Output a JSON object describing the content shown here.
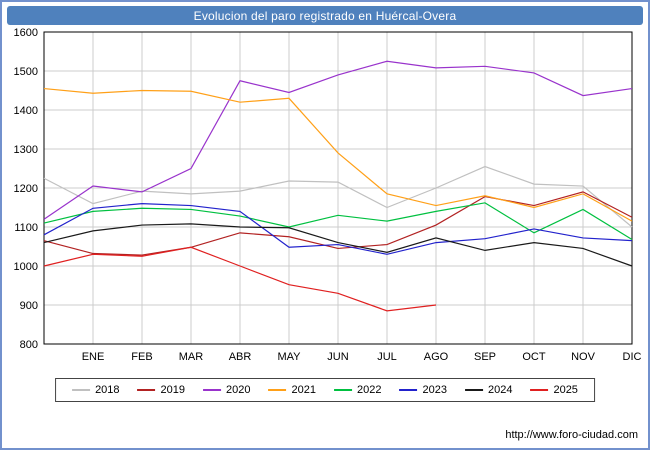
{
  "window": {
    "title": "Evolucion del paro registrado en Huércal-Overa"
  },
  "footer": {
    "url": "http://www.foro-ciudad.com"
  },
  "theme": {
    "accent": "#4f81bd",
    "frame_border": "#7291cd",
    "grid_color": "#cccccc",
    "plot_border": "#000000"
  },
  "chart_data": {
    "type": "line",
    "title": "Evolucion del paro registrado en Huércal-Overa",
    "xlabel": "",
    "ylabel": "",
    "ylim": [
      800,
      1600
    ],
    "ytick_step": 100,
    "yticks": [
      800,
      900,
      1000,
      1100,
      1200,
      1300,
      1400,
      1500,
      1600
    ],
    "grid": true,
    "legend_position": "bottom",
    "categories": [
      "",
      "ENE",
      "FEB",
      "MAR",
      "ABR",
      "MAY",
      "JUN",
      "JUL",
      "AGO",
      "SEP",
      "OCT",
      "NOV",
      "DIC"
    ],
    "series": [
      {
        "name": "2018",
        "color": "#c0c0c0",
        "values": [
          1225,
          1160,
          1192,
          1185,
          1192,
          1218,
          1215,
          1150,
          1200,
          1255,
          1210,
          1205,
          1100
        ]
      },
      {
        "name": "2019",
        "color": "#b22222",
        "values": [
          1065,
          1032,
          1028,
          1048,
          1085,
          1075,
          1045,
          1055,
          1105,
          1178,
          1155,
          1190,
          1125
        ]
      },
      {
        "name": "2020",
        "color": "#9933cc",
        "values": [
          1120,
          1205,
          1190,
          1250,
          1475,
          1445,
          1490,
          1525,
          1508,
          1512,
          1495,
          1437,
          1455
        ]
      },
      {
        "name": "2021",
        "color": "#ffa018",
        "values": [
          1455,
          1443,
          1450,
          1448,
          1420,
          1430,
          1290,
          1185,
          1155,
          1180,
          1150,
          1185,
          1115
        ]
      },
      {
        "name": "2022",
        "color": "#00c040",
        "values": [
          1110,
          1140,
          1148,
          1145,
          1128,
          1100,
          1130,
          1115,
          1140,
          1162,
          1085,
          1145,
          1068
        ]
      },
      {
        "name": "2023",
        "color": "#2222cc",
        "values": [
          1080,
          1148,
          1160,
          1155,
          1140,
          1048,
          1055,
          1030,
          1060,
          1070,
          1095,
          1072,
          1065
        ]
      },
      {
        "name": "2024",
        "color": "#1a1a1a",
        "values": [
          1060,
          1090,
          1105,
          1108,
          1100,
          1098,
          1060,
          1035,
          1072,
          1040,
          1060,
          1045,
          1000
        ]
      },
      {
        "name": "2025",
        "color": "#e02020",
        "values": [
          1000,
          1030,
          1025,
          1048,
          1000,
          952,
          930,
          885,
          900
        ]
      }
    ]
  }
}
